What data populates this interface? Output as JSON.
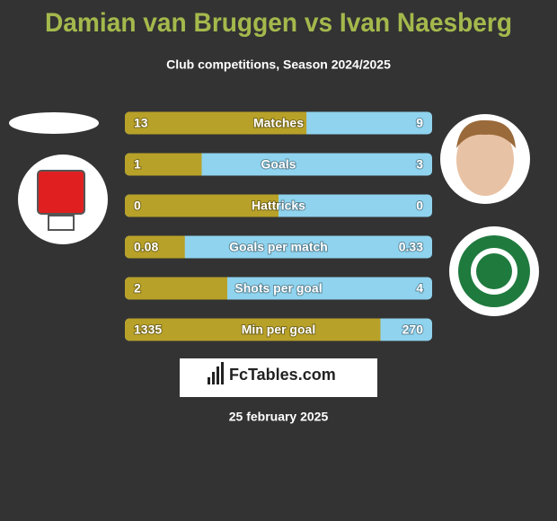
{
  "header": {
    "title": "Damian van Bruggen vs Ivan Naesberg",
    "subtitle": "Club competitions, Season 2024/2025"
  },
  "stats": [
    {
      "label": "Matches",
      "left": 13,
      "right": 9
    },
    {
      "label": "Goals",
      "left": 1,
      "right": 3
    },
    {
      "label": "Hattricks",
      "left": 0,
      "right": 0
    },
    {
      "label": "Goals per match",
      "left": 0.08,
      "right": 0.33
    },
    {
      "label": "Shots per goal",
      "left": 2,
      "right": 4
    },
    {
      "label": "Min per goal",
      "left": 1335,
      "right": 270
    }
  ],
  "footer": {
    "brand": "FcTables.com",
    "date": "25 february 2025"
  }
}
